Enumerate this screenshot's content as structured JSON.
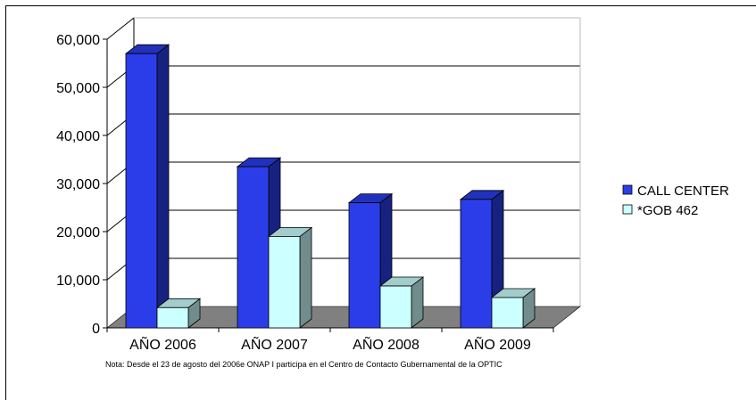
{
  "chart_data": {
    "type": "bar",
    "categories": [
      "AÑO 2006",
      "AÑO 2007",
      "AÑO 2008",
      "AÑO 2009"
    ],
    "series": [
      {
        "name": "CALL CENTER",
        "values": [
          57000,
          33500,
          26000,
          26700
        ],
        "color": "#2a3de8"
      },
      {
        "name": "*GOB 462",
        "values": [
          4200,
          19000,
          8700,
          6300
        ],
        "color": "#ccffff"
      }
    ],
    "ylim": [
      0,
      60000
    ],
    "y_ticks": [
      "0",
      "10,000",
      "20,000",
      "30,000",
      "40,000",
      "50,000",
      "60,000"
    ],
    "grid": true,
    "legend_position": "right",
    "three_d": true
  },
  "note": "Nota: Desde el 23 de agosto del 2006e ONAP I participa en el Centro de Contacto Gubernamental de la OPTIC"
}
